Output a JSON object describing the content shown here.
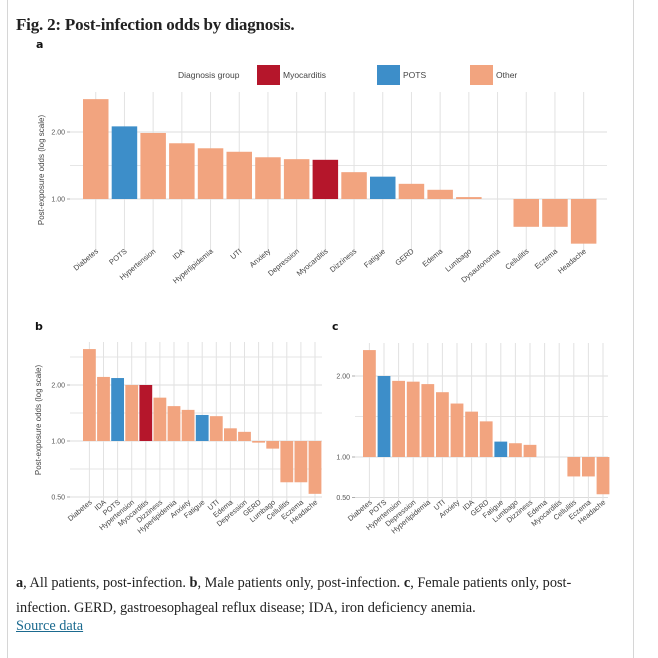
{
  "figure": {
    "title": "Fig. 2: Post-infection odds by diagnosis.",
    "panel_labels": [
      "a",
      "b",
      "c"
    ],
    "legend": {
      "title": "Diagnosis group",
      "items": [
        {
          "label": "Myocarditis",
          "color": "#b5162b"
        },
        {
          "label": "POTS",
          "color": "#3d8ec9"
        },
        {
          "label": "Other",
          "color": "#f2a47f"
        }
      ]
    },
    "caption": {
      "a_label": "a",
      "a_text": ", All patients, post-infection. ",
      "b_label": "b",
      "b_text": ", Male patients only, post-infection. ",
      "c_label": "c",
      "c_text": ", Female patients only, post-infection. GERD, gastroesophageal reflux disease; IDA, iron deficiency anemia."
    },
    "source_link": "Source data"
  },
  "chart_data": [
    {
      "panel": "a",
      "type": "bar",
      "title": "All patients, post-infection",
      "xlabel": "",
      "ylabel": "Post-exposure odds (log scale)",
      "yscale": "log",
      "baseline": 1.0,
      "ylim": [
        0.5,
        2.85
      ],
      "yticks": [
        1.0,
        2.0
      ],
      "ytick_labels": [
        "1.00",
        "2.00"
      ],
      "minor_gridlines": [
        0.5,
        1.414
      ],
      "grid": true,
      "legend": "top-center",
      "categories": [
        "Diabetes",
        "POTS",
        "Hypertension",
        "IDA",
        "Hyperlipidemia",
        "UTI",
        "Anxiety",
        "Depression",
        "Myocarditis",
        "Dizziness",
        "Fatigue",
        "GERD",
        "Edema",
        "Lumbago",
        "Dysautonomia",
        "Cellulitis",
        "Eczema",
        "Headache"
      ],
      "values": [
        2.81,
        2.12,
        1.98,
        1.78,
        1.69,
        1.63,
        1.54,
        1.51,
        1.5,
        1.32,
        1.26,
        1.17,
        1.1,
        1.02,
        1.0,
        0.75,
        0.75,
        0.63
      ],
      "groups": [
        "Other",
        "POTS",
        "Other",
        "Other",
        "Other",
        "Other",
        "Other",
        "Other",
        "Myocarditis",
        "Other",
        "POTS",
        "Other",
        "Other",
        "Other",
        "Other",
        "Other",
        "Other",
        "Other"
      ]
    },
    {
      "panel": "b",
      "type": "bar",
      "title": "Male patients only, post-infection",
      "xlabel": "",
      "ylabel": "Post-exposure odds (log scale)",
      "yscale": "log",
      "baseline": 1.0,
      "ylim": [
        0.5,
        3.2
      ],
      "yticks": [
        0.5,
        1.0,
        2.0
      ],
      "ytick_labels": [
        "0.50",
        "1.00",
        "2.00"
      ],
      "minor_gridlines": [
        0.707,
        1.414,
        2.83
      ],
      "grid": true,
      "categories": [
        "Diabetes",
        "IDA",
        "POTS",
        "Hypertension",
        "Myocarditis",
        "Dizziness",
        "Hyperlipidemia",
        "Anxiety",
        "Fatigue",
        "UTI",
        "Edema",
        "Depression",
        "GERD",
        "Lumbago",
        "Cellulitis",
        "Eczema",
        "Headache"
      ],
      "values": [
        3.12,
        2.21,
        2.18,
        2.0,
        2.0,
        1.71,
        1.54,
        1.47,
        1.38,
        1.36,
        1.17,
        1.12,
        0.98,
        0.91,
        0.6,
        0.6,
        0.52
      ],
      "groups": [
        "Other",
        "Other",
        "POTS",
        "Other",
        "Myocarditis",
        "Other",
        "Other",
        "Other",
        "POTS",
        "Other",
        "Other",
        "Other",
        "Other",
        "Other",
        "Other",
        "Other",
        "Other"
      ]
    },
    {
      "panel": "c",
      "type": "bar",
      "title": "Female patients only, post-infection",
      "xlabel": "",
      "ylabel": "",
      "yscale": "linear",
      "baseline": 1.0,
      "ylim": [
        0.5,
        2.4
      ],
      "yticks": [
        0.5,
        1.0,
        2.0
      ],
      "ytick_labels": [
        "0.50",
        "1.00",
        "2.00"
      ],
      "minor_gridlines": [
        1.5
      ],
      "grid": true,
      "categories": [
        "Diabetes",
        "POTS",
        "Hypertension",
        "Depression",
        "Hyperlipidemia",
        "UTI",
        "Anxiety",
        "IDA",
        "GERD",
        "Fatigue",
        "Lumbago",
        "Dizziness",
        "Edema",
        "Myocarditis",
        "Cellulitis",
        "Eczema",
        "Headache"
      ],
      "values": [
        2.32,
        2.0,
        1.94,
        1.93,
        1.9,
        1.8,
        1.66,
        1.56,
        1.44,
        1.19,
        1.17,
        1.15,
        1.0,
        1.0,
        0.76,
        0.76,
        0.54
      ],
      "groups": [
        "Other",
        "POTS",
        "Other",
        "Other",
        "Other",
        "Other",
        "Other",
        "Other",
        "Other",
        "POTS",
        "Other",
        "Other",
        "Other",
        "Other",
        "Other",
        "Other",
        "Other"
      ]
    }
  ]
}
